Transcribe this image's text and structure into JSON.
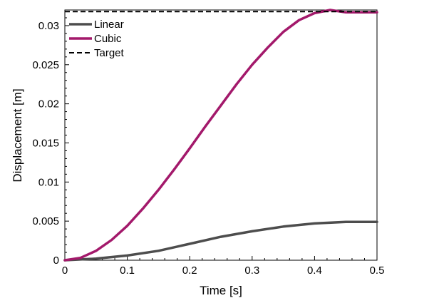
{
  "chart_data": {
    "type": "line",
    "title": "",
    "xlabel": "Time [s]",
    "ylabel": "Displacement [m]",
    "xlim": [
      0,
      0.5
    ],
    "ylim": [
      0,
      0.032
    ],
    "x_ticks": [
      0,
      0.1,
      0.2,
      0.3,
      0.4,
      0.5
    ],
    "x_tick_labels": [
      "0",
      "0.1",
      "0.2",
      "0.3",
      "0.4",
      "0.5"
    ],
    "y_ticks": [
      0,
      0.005,
      0.01,
      0.015,
      0.02,
      0.025,
      0.03
    ],
    "y_tick_labels": [
      "0",
      "0.005",
      "0.01",
      "0.015",
      "0.02",
      "0.025",
      "0.03"
    ],
    "grid": false,
    "legend_position": "top-left",
    "series": [
      {
        "name": "Linear",
        "color": "#4d4d4d",
        "style": "solid",
        "x": [
          0,
          0.05,
          0.1,
          0.15,
          0.2,
          0.25,
          0.3,
          0.35,
          0.4,
          0.45,
          0.5
        ],
        "y": [
          0,
          0.0002,
          0.0006,
          0.0012,
          0.0021,
          0.003,
          0.0037,
          0.0043,
          0.0047,
          0.0049,
          0.0049
        ]
      },
      {
        "name": "Cubic",
        "color": "#a3196b",
        "style": "solid",
        "x": [
          0,
          0.025,
          0.05,
          0.075,
          0.1,
          0.125,
          0.15,
          0.175,
          0.2,
          0.225,
          0.25,
          0.275,
          0.3,
          0.325,
          0.35,
          0.375,
          0.4,
          0.425,
          0.45,
          0.5
        ],
        "y": [
          0,
          0.0003,
          0.0012,
          0.0026,
          0.0044,
          0.0066,
          0.009,
          0.0116,
          0.0143,
          0.0171,
          0.0198,
          0.0225,
          0.025,
          0.0272,
          0.0292,
          0.0307,
          0.0316,
          0.032,
          0.0317,
          0.0317
        ]
      },
      {
        "name": "Target",
        "color": "#000000",
        "style": "dashed",
        "x": [
          0,
          0.5
        ],
        "y": [
          0.0318,
          0.0318
        ]
      }
    ]
  }
}
